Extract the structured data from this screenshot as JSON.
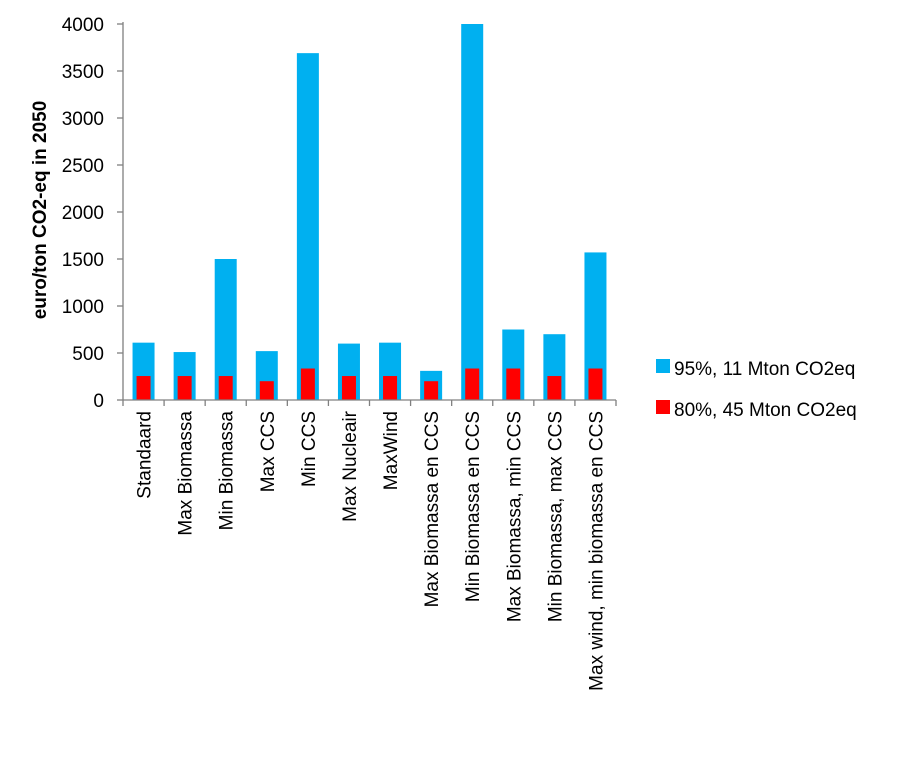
{
  "chart_data": {
    "type": "bar",
    "title": "",
    "xlabel": "",
    "ylabel": "euro/ton CO2-eq in 2050",
    "ylim": [
      0,
      4000
    ],
    "yticks": [
      0,
      500,
      1000,
      1500,
      2000,
      2500,
      3000,
      3500,
      4000
    ],
    "grid": false,
    "legend_position": "right",
    "categories": [
      "Standaard",
      "Max Biomassa",
      "Min Biomassa",
      "Max CCS",
      "Min CCS",
      "Max Nucleair",
      "MaxWind",
      "Max Biomassa en CCS",
      "Min Biomassa en CCS",
      "Max Biomassa, min CCS",
      "Min Biomassa, max CCS",
      "Max wind, min biomassa en CCS"
    ],
    "series": [
      {
        "name": "95%, 11 Mton CO2eq",
        "color": "#00B0F0",
        "values": [
          610,
          510,
          1500,
          520,
          3690,
          600,
          610,
          310,
          4000,
          750,
          700,
          1570
        ]
      },
      {
        "name": "80%, 45 Mton CO2eq",
        "color": "#FF0000",
        "values": [
          255,
          255,
          255,
          200,
          335,
          255,
          255,
          200,
          335,
          335,
          255,
          335
        ]
      }
    ]
  }
}
